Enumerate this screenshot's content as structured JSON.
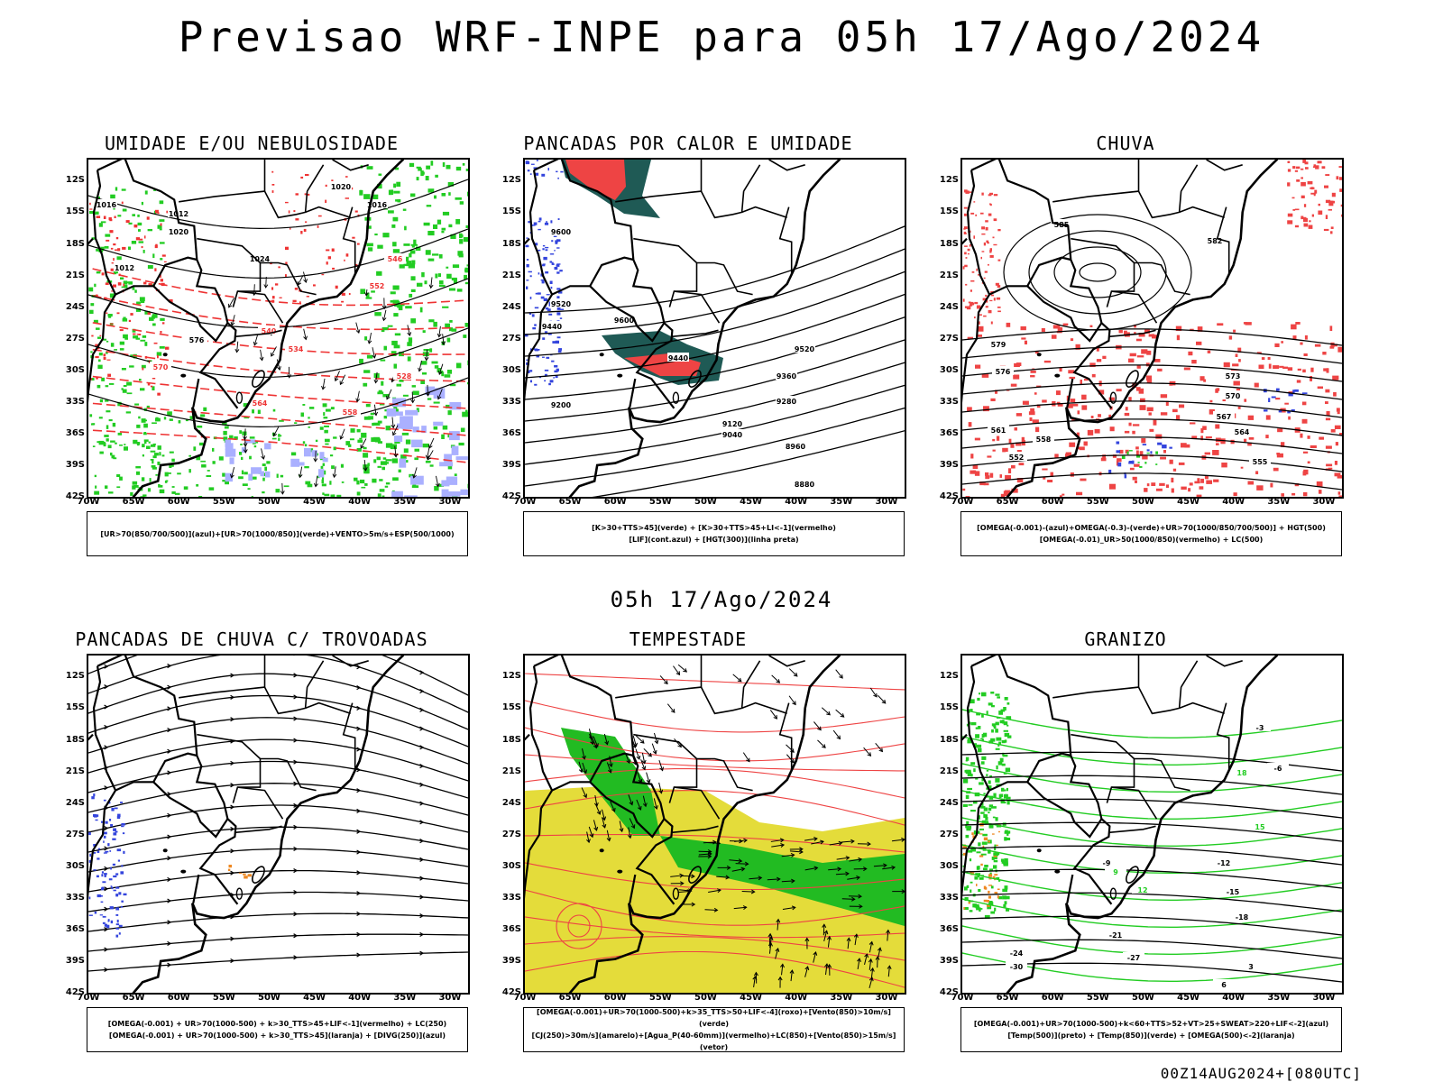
{
  "page": {
    "title": "Previsao WRF-INPE  para 05h 17/Ago/2024",
    "subtitle": "05h 17/Ago/2024",
    "footer": "00Z14AUG2024+[080UTC]"
  },
  "axes": {
    "lat_labels": [
      "12S",
      "15S",
      "18S",
      "21S",
      "24S",
      "27S",
      "30S",
      "33S",
      "36S",
      "39S",
      "42S"
    ],
    "lon_labels": [
      "70W",
      "65W",
      "60W",
      "55W",
      "50W",
      "45W",
      "40W",
      "35W",
      "30W"
    ]
  },
  "panels": [
    {
      "id": "umidade",
      "title": "UMIDADE E/OU NEBULOSIDADE",
      "legend": [
        "[UR>70(850/700/500)](azul)+[UR>70(1000/850)](verde)+VENTO>5m/s+ESP(500/1000)"
      ],
      "contour_labels": [
        "1016",
        "1012",
        "1020",
        "1024",
        "1020",
        "1016",
        "1012",
        "576",
        "570",
        "564",
        "558",
        "552",
        "546",
        "540",
        "534",
        "528"
      ]
    },
    {
      "id": "pancadas-calor",
      "title": "PANCADAS POR CALOR E UMIDADE",
      "legend": [
        "[K>30+TTS>45](verde) + [K>30+TTS>45+LI<-1](vermelho)",
        "[LIF](cont.azul) + [HGT(300)](linha preta)"
      ],
      "contour_labels": [
        "9600",
        "9520",
        "9440",
        "9360",
        "9280",
        "9200",
        "9120",
        "9040",
        "8960",
        "8880"
      ]
    },
    {
      "id": "chuva",
      "title": "CHUVA",
      "legend": [
        "[OMEGA(-0.001)-(azul)+OMEGA(-0.3)-(verde)+UR>70(1000/850/700/500)] + HGT(500)",
        "[OMEGA(-0.01)_UR>50(1000/850)(vermelho) + LC(500)"
      ],
      "contour_labels": [
        "585",
        "582",
        "579",
        "576",
        "573",
        "570",
        "567",
        "564",
        "561",
        "558",
        "555",
        "552"
      ]
    },
    {
      "id": "trovoadas",
      "title": "PANCADAS DE CHUVA C/ TROVOADAS",
      "legend": [
        "[OMEGA(-0.001) + UR>70(1000-500) + k>30_TTS>45+LIF<-1](vermelho) + LC(250)",
        "[OMEGA(-0.001) + UR>70(1000-500) + k>30_TTS>45](laranja) + [DIVG(250)](azul)"
      ],
      "contour_labels": []
    },
    {
      "id": "tempestade",
      "title": "TEMPESTADE",
      "legend": [
        "[OMEGA(-0.001)+UR>70(1000-500)+k>35_TTS>50+LIF<-4](roxo)+[Vento(850)>10m/s](verde)",
        "[CJ(250)>30m/s](amarelo)+[Agua_P(40-60mm)](vermelho)+LC(850)+[Vento(850)>15m/s](vetor)"
      ],
      "contour_labels": []
    },
    {
      "id": "granizo",
      "title": "GRANIZO",
      "legend": [
        "[OMEGA(-0.001)+UR>70(1000-500)+k<60+TTS>52+VT>25+SWEAT>220+LIF<-2](azul)",
        "[Temp(500)](preto) + [Temp(850)](verde) + [OMEGA(500)<-2](laranja)"
      ],
      "contour_labels": [
        "-3",
        "-6",
        "-9",
        "-12",
        "-15",
        "-18",
        "-21",
        "-24",
        "-27",
        "-30",
        "3",
        "6",
        "9",
        "12",
        "15",
        "18"
      ]
    }
  ],
  "colors": {
    "land_line": "#000000",
    "rh_low": "#22cc22",
    "rh_high": "#aab0ff",
    "thickness": "#ee3333",
    "pressure": "#000000",
    "unstable_green": "#1f5a55",
    "unstable_red": "#ee4444",
    "lif_blue": "#3344dd",
    "jet_yellow": "#e4dc3a",
    "wind_green": "#22bb22",
    "water_red": "#ee4444",
    "hail_orange": "#ee8822"
  }
}
